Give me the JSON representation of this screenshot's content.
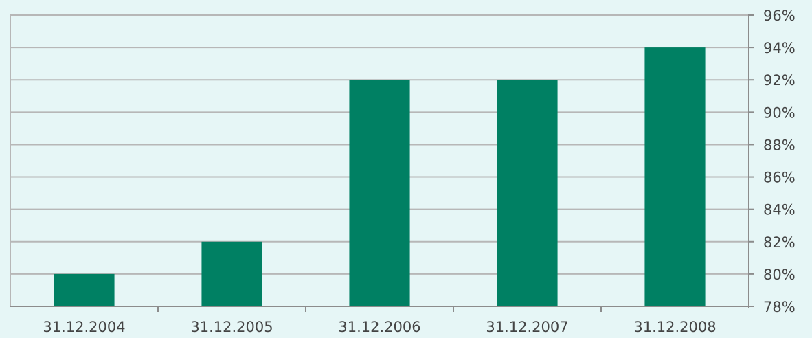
{
  "chart_data": {
    "type": "bar",
    "categories": [
      "31.12.2004",
      "31.12.2005",
      "31.12.2006",
      "31.12.2007",
      "31.12.2008"
    ],
    "series": [
      {
        "values": [
          80,
          82,
          92,
          92,
          94
        ]
      }
    ],
    "ylim": [
      78,
      96
    ],
    "ytick_step": 2,
    "ytick_suffix": "%",
    "y_axis_side": "right",
    "grid": true,
    "bar_color": "#008063",
    "background_color": "#e6f6f6",
    "legend": "none"
  }
}
